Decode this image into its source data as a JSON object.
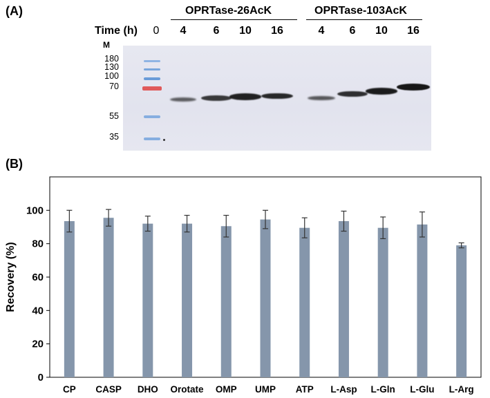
{
  "panel_a": {
    "label": "(A)",
    "groups": [
      "OPRTase-26AcK",
      "OPRTase-103AcK"
    ],
    "time_label": "Time (h)",
    "time_points": [
      "0",
      "4",
      "6",
      "10",
      "16",
      "4",
      "6",
      "10",
      "16"
    ],
    "marker_label": "M",
    "marker_sizes": [
      "180",
      "130",
      "100",
      "70",
      "55",
      "35"
    ],
    "band_intensity": [
      0,
      0.35,
      0.65,
      0.85,
      0.8,
      0.4,
      0.75,
      0.9,
      0.95
    ],
    "colors": {
      "ladder_blue": "#7aa6dc",
      "ladder_red": "#e05a5a",
      "band": "#111111"
    }
  },
  "panel_b": {
    "label": "(B)"
  },
  "chart_data": {
    "type": "bar",
    "categories": [
      "CP",
      "CASP",
      "DHO",
      "Orotate",
      "OMP",
      "UMP",
      "ATP",
      "L-Asp",
      "L-Gln",
      "L-Glu",
      "L-Arg"
    ],
    "series": [
      {
        "values": [
          93.5,
          95.5,
          92,
          92,
          90.5,
          94.5,
          89.5,
          93.5,
          89.5,
          91.5,
          79
        ],
        "error": [
          6.5,
          5,
          4.5,
          5,
          6.5,
          5.5,
          6,
          6,
          6.5,
          7.5,
          1.5
        ]
      }
    ],
    "xlabel": "",
    "ylabel": "Recovery (%)",
    "ylim": [
      0,
      120
    ],
    "yticks": [
      0,
      20,
      40,
      60,
      80,
      100
    ],
    "grid": false,
    "colors": {
      "bar": "#8596ab",
      "error": "#333333",
      "frame": "#000000"
    }
  }
}
